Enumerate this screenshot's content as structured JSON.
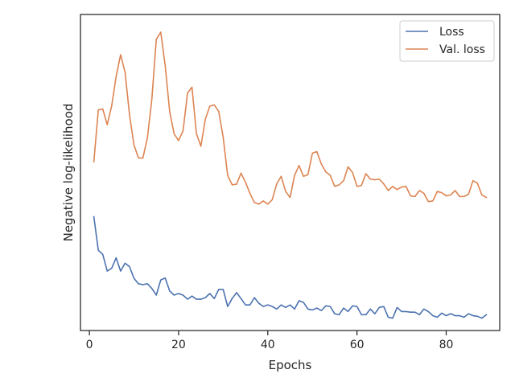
{
  "chart_data": {
    "type": "line",
    "title": "",
    "xlabel": "Epochs",
    "ylabel": "Negative log-likelihood",
    "xlim": [
      -2,
      92
    ],
    "ylim": [
      0,
      100
    ],
    "y_ticks_shown": false,
    "x_ticks": [
      0,
      20,
      40,
      60,
      80
    ],
    "grid": false,
    "legend_position": "top-right",
    "series": [
      {
        "name": "Loss",
        "color": "#4c72b0",
        "x": [
          1,
          2,
          3,
          4,
          5,
          6,
          7,
          8,
          9,
          10,
          11,
          12,
          13,
          14,
          15,
          16,
          17,
          18,
          19,
          20,
          21,
          22,
          23,
          24,
          25,
          26,
          27,
          28,
          29,
          30,
          31,
          32,
          33,
          34,
          35,
          36,
          37,
          38,
          39,
          40,
          41,
          42,
          43,
          44,
          45,
          46,
          47,
          48,
          49,
          50,
          51,
          52,
          53,
          54,
          55,
          56,
          57,
          58,
          59,
          60,
          61,
          62,
          63,
          64,
          65,
          66,
          67,
          68,
          69,
          70,
          71,
          72,
          73,
          74,
          75,
          76,
          77,
          78,
          79,
          80,
          81,
          82,
          83,
          84,
          85,
          86,
          87,
          88,
          89
        ],
        "values": [
          36.0,
          25.4,
          24.1,
          18.8,
          19.7,
          23.0,
          18.8,
          21.3,
          20.2,
          16.5,
          14.8,
          14.5,
          14.8,
          13.3,
          11.2,
          16.0,
          16.6,
          12.5,
          11.2,
          11.7,
          11.2,
          9.9,
          10.9,
          9.9,
          9.9,
          10.4,
          11.7,
          10.1,
          13.0,
          13.0,
          7.6,
          10.1,
          12.0,
          10.1,
          8.1,
          8.1,
          10.4,
          8.6,
          7.6,
          8.1,
          7.6,
          6.8,
          8.1,
          7.3,
          8.1,
          6.8,
          9.4,
          8.9,
          6.8,
          6.5,
          7.1,
          6.3,
          7.8,
          7.6,
          5.3,
          5.0,
          7.1,
          6.0,
          7.8,
          7.6,
          5.0,
          5.0,
          6.8,
          5.3,
          7.3,
          7.6,
          4.2,
          3.9,
          7.3,
          6.0,
          6.0,
          5.8,
          5.8,
          5.0,
          6.8,
          6.0,
          4.7,
          4.2,
          5.5,
          4.7,
          5.3,
          4.7,
          4.7,
          4.2,
          5.3,
          4.7,
          4.5,
          3.9,
          5.0
        ]
      },
      {
        "name": "Val. loss",
        "color": "#dd8452",
        "x": [
          1,
          2,
          3,
          4,
          5,
          6,
          7,
          8,
          9,
          10,
          11,
          12,
          13,
          14,
          15,
          16,
          17,
          18,
          19,
          20,
          21,
          22,
          23,
          24,
          25,
          26,
          27,
          28,
          29,
          30,
          31,
          32,
          33,
          34,
          35,
          36,
          37,
          38,
          39,
          40,
          41,
          42,
          43,
          44,
          45,
          46,
          47,
          48,
          49,
          50,
          51,
          52,
          53,
          54,
          55,
          56,
          57,
          58,
          59,
          60,
          61,
          62,
          63,
          64,
          65,
          66,
          67,
          68,
          69,
          70,
          71,
          72,
          73,
          74,
          75,
          76,
          77,
          78,
          79,
          80,
          81,
          82,
          83,
          84,
          85,
          86,
          87,
          88,
          89
        ],
        "values": [
          53.4,
          69.8,
          70.1,
          65.1,
          71.1,
          80.4,
          87.3,
          81.7,
          68.2,
          58.7,
          54.6,
          54.6,
          60.9,
          73.1,
          92.1,
          94.4,
          83.8,
          69.3,
          62.2,
          60.1,
          63.2,
          75.1,
          77.0,
          62.3,
          58.3,
          66.9,
          71.0,
          71.4,
          69.3,
          61.1,
          49.1,
          46.1,
          46.3,
          49.8,
          46.9,
          43.4,
          40.5,
          40.0,
          41.0,
          40.0,
          41.4,
          46.4,
          48.8,
          44.0,
          42.1,
          49.1,
          52.2,
          48.8,
          49.3,
          56.1,
          56.6,
          52.7,
          50.2,
          49.1,
          45.6,
          46.1,
          47.4,
          51.8,
          50.0,
          45.6,
          45.9,
          49.6,
          47.9,
          47.7,
          47.9,
          46.4,
          44.3,
          45.6,
          44.6,
          45.4,
          45.6,
          42.6,
          42.4,
          44.3,
          43.4,
          40.8,
          41.0,
          44.0,
          43.6,
          42.6,
          42.9,
          44.3,
          42.4,
          42.4,
          43.1,
          47.4,
          46.6,
          42.9,
          42.1
        ]
      }
    ]
  }
}
